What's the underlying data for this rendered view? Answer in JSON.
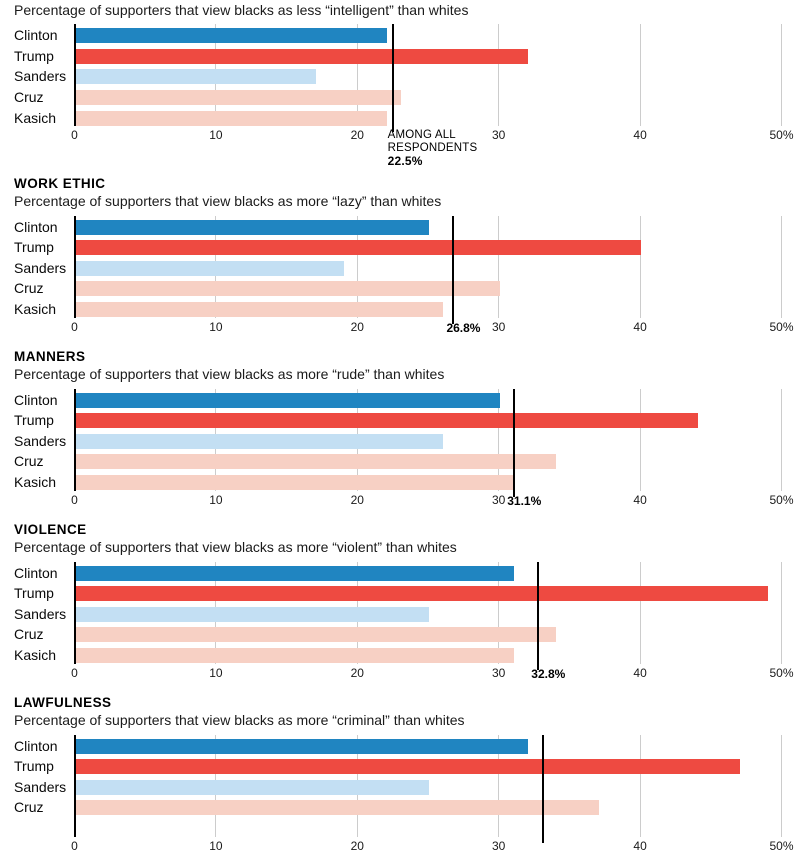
{
  "figure": {
    "axis_ticks": [
      {
        "value": 0,
        "label": "0"
      },
      {
        "value": 10,
        "label": "10"
      },
      {
        "value": 20,
        "label": "20"
      },
      {
        "value": 30,
        "label": "30"
      },
      {
        "value": 40,
        "label": "40"
      },
      {
        "value": 50,
        "label": "50%"
      }
    ],
    "candidate_colors": {
      "Clinton": "#2085c1",
      "Trump": "#ee4a41",
      "Sanders": "#c3dff3",
      "Cruz": "#f7d0c4",
      "Kasich": "#f7d0c4"
    },
    "grid_color": "#cccccc",
    "axis_color": "#000000",
    "reference_color": "#000000"
  },
  "chart_data": [
    {
      "type": "bar",
      "section_label": "",
      "title": "Percentage of supporters that view blacks as less “intelligent” than whites",
      "categories": [
        "Clinton",
        "Trump",
        "Sanders",
        "Cruz",
        "Kasich"
      ],
      "values": [
        22,
        32,
        17,
        23,
        22
      ],
      "xlim": [
        0,
        50
      ],
      "reference": {
        "value": 22.5,
        "prefix_lines": [
          "AMONG ALL",
          "RESPONDENTS"
        ],
        "label": "22.5%"
      }
    },
    {
      "type": "bar",
      "section_label": "WORK ETHIC",
      "title": "Percentage of supporters that view blacks as more “lazy” than whites",
      "categories": [
        "Clinton",
        "Trump",
        "Sanders",
        "Cruz",
        "Kasich"
      ],
      "values": [
        25,
        40,
        19,
        30,
        26
      ],
      "xlim": [
        0,
        50
      ],
      "reference": {
        "value": 26.8,
        "label": "26.8%"
      }
    },
    {
      "type": "bar",
      "section_label": "MANNERS",
      "title": "Percentage of supporters that view blacks as more “rude” than whites",
      "categories": [
        "Clinton",
        "Trump",
        "Sanders",
        "Cruz",
        "Kasich"
      ],
      "values": [
        30,
        44,
        26,
        34,
        31
      ],
      "xlim": [
        0,
        50
      ],
      "reference": {
        "value": 31.1,
        "label": "31.1%"
      }
    },
    {
      "type": "bar",
      "section_label": "VIOLENCE",
      "title": "Percentage of supporters that view blacks as more “violent” than whites",
      "categories": [
        "Clinton",
        "Trump",
        "Sanders",
        "Cruz",
        "Kasich"
      ],
      "values": [
        31,
        49,
        25,
        34,
        31
      ],
      "xlim": [
        0,
        50
      ],
      "reference": {
        "value": 32.8,
        "label": "32.8%"
      }
    },
    {
      "type": "bar",
      "section_label": "LAWFULNESS",
      "title": "Percentage of supporters that view blacks as more “criminal” than whites",
      "categories": [
        "Clinton",
        "Trump",
        "Sanders",
        "Cruz"
      ],
      "values": [
        32,
        47,
        25,
        37
      ],
      "xlim": [
        0,
        50
      ],
      "reference": {
        "value": 33.1,
        "label": ""
      },
      "clipped_at_bottom": true
    }
  ]
}
